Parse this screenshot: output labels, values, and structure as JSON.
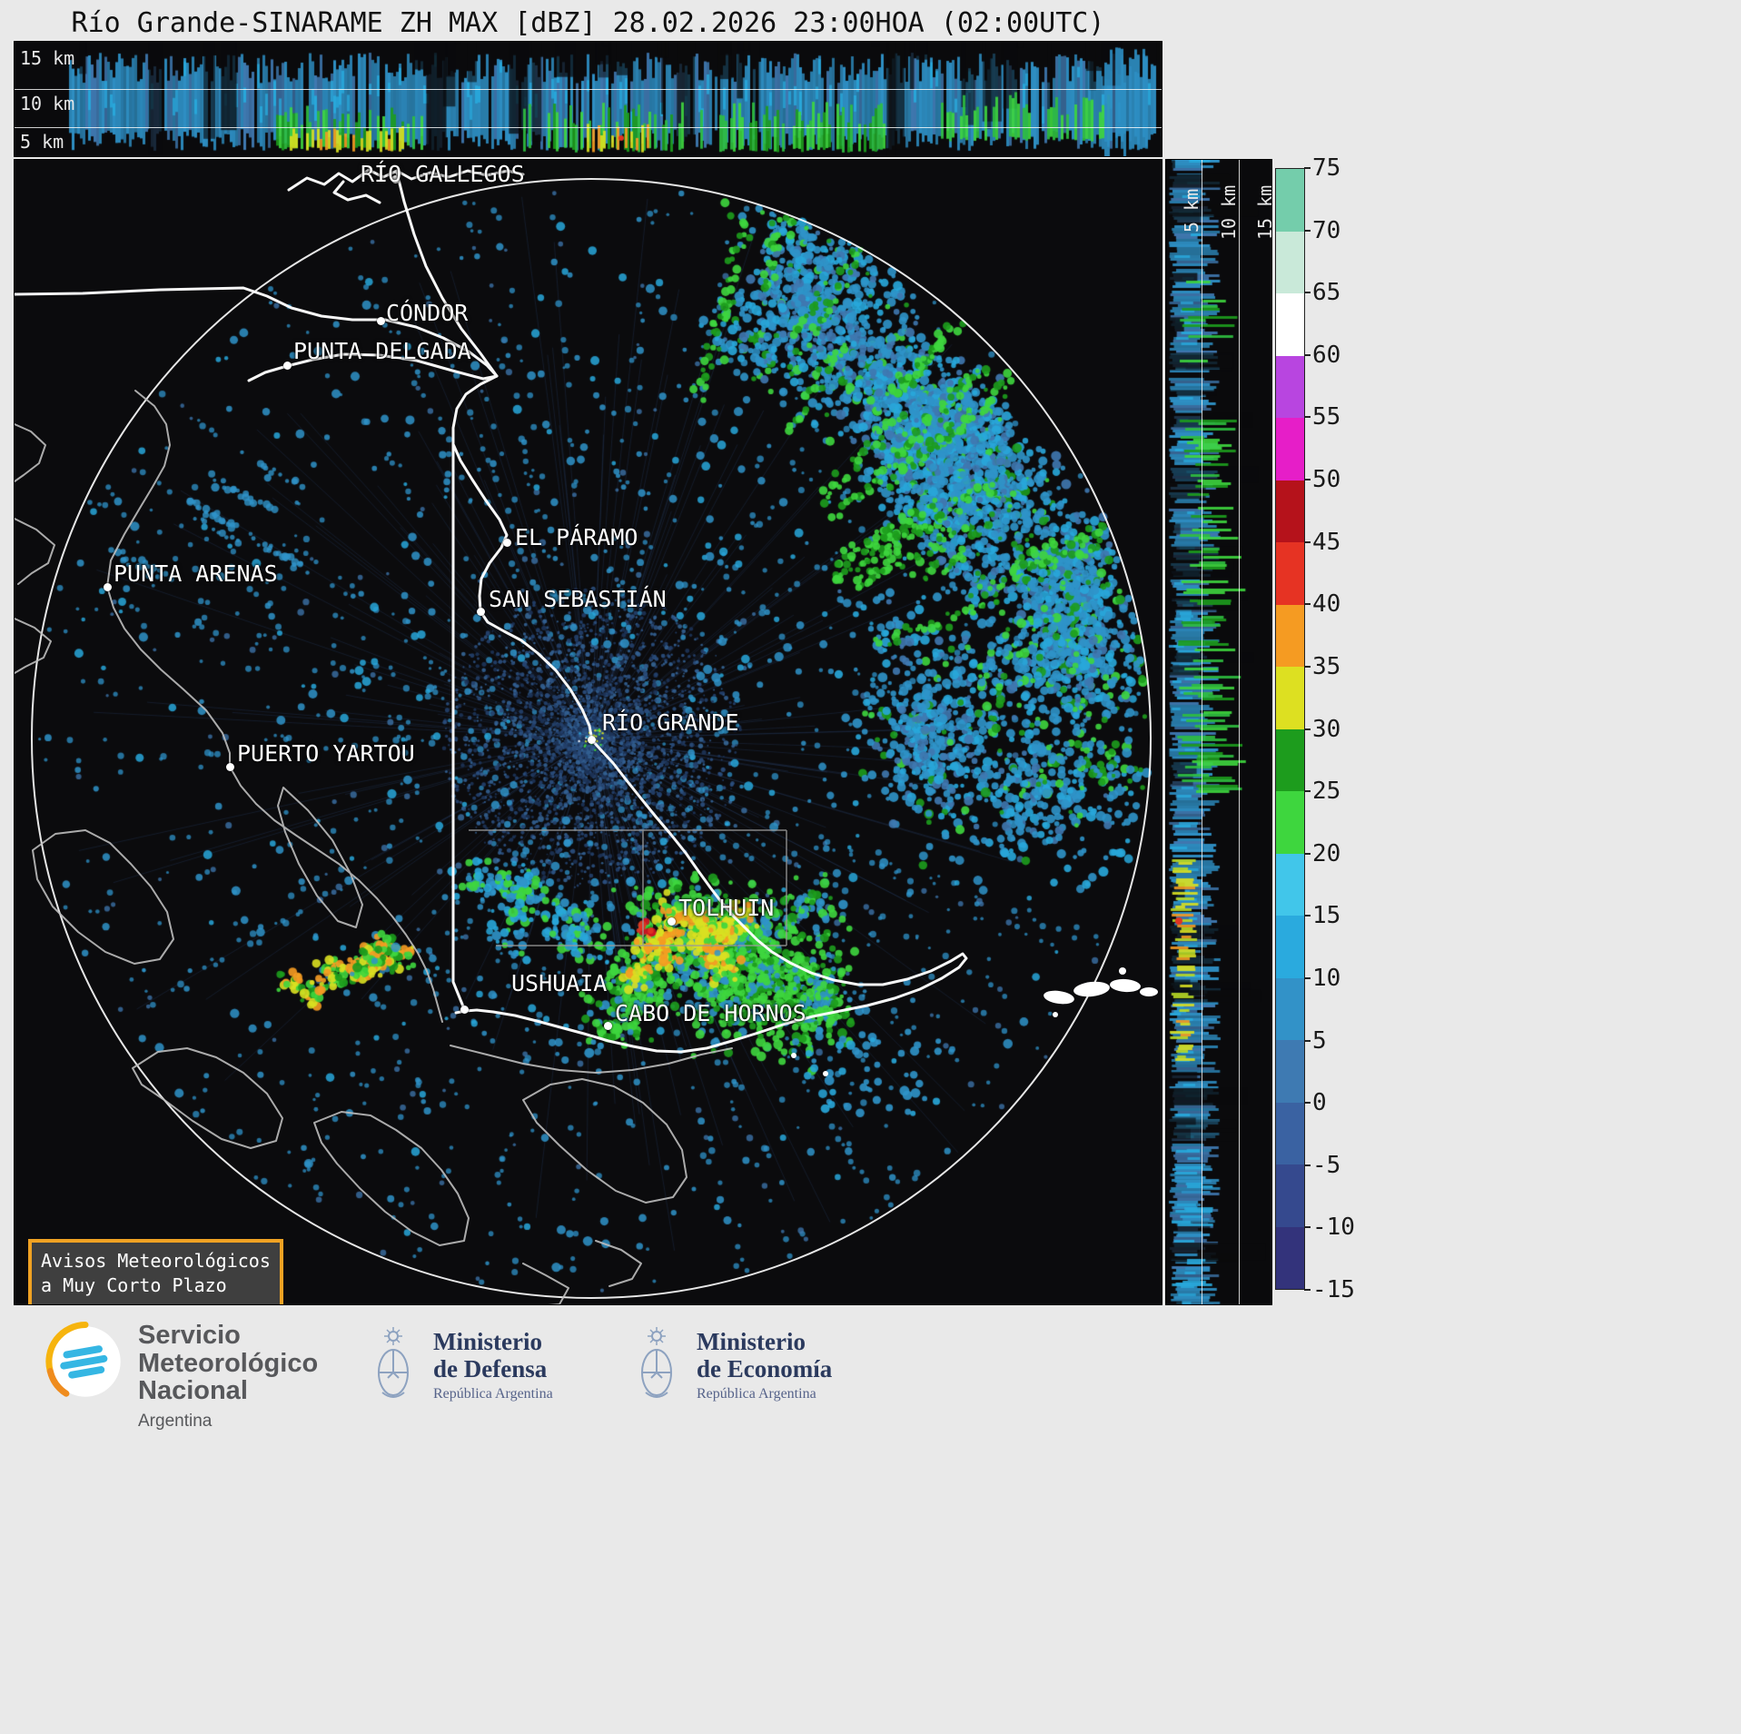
{
  "title": "Río Grande-SINARAME ZH MAX [dBZ] 28.02.2026 23:00HOA (02:00UTC)",
  "top_profile": {
    "altitude_labels": [
      "15 km",
      "10 km",
      "5 km"
    ]
  },
  "side_profile": {
    "altitude_labels": [
      "5 km",
      "10 km",
      "15 km"
    ]
  },
  "colorbar": {
    "unit": "dBZ",
    "ticks": [
      "75",
      "70",
      "65",
      "60",
      "55",
      "50",
      "45",
      "40",
      "35",
      "30",
      "25",
      "20",
      "15",
      "10",
      "5",
      "0",
      "-5",
      "-10",
      "-15"
    ],
    "band_colors_top_to_bottom": [
      "#74cdab",
      "#c9e9d9",
      "#ffffff",
      "#b845e0",
      "#e61ec8",
      "#b5121b",
      "#e63323",
      "#f59b22",
      "#dde021",
      "#1d9c1d",
      "#3ed63e",
      "#41c6ea",
      "#2aaade",
      "#3292c8",
      "#3e7ab2",
      "#3a62a2",
      "#35498e",
      "#33337b"
    ]
  },
  "map": {
    "radar_site": "RÍO GRANDE",
    "places": [
      {
        "name": "RÍO GALLEGOS",
        "label": [
          396,
          176
        ],
        "dot": [
          434,
          196
        ]
      },
      {
        "name": "CÓNDOR",
        "label": [
          424,
          329
        ],
        "dot": [
          418,
          352
        ]
      },
      {
        "name": "PUNTA DELGADA",
        "label": [
          322,
          371
        ],
        "dot": [
          315,
          401
        ]
      },
      {
        "name": "EL PÁRAMO",
        "label": [
          566,
          576
        ],
        "dot": [
          557,
          596
        ]
      },
      {
        "name": "SAN SEBASTIÁN",
        "label": [
          537,
          644
        ],
        "dot": [
          528,
          672
        ]
      },
      {
        "name": "PUNTA ARENAS",
        "label": [
          124,
          616
        ],
        "dot": [
          117,
          645
        ]
      },
      {
        "name": "RÍO GRANDE",
        "label": [
          662,
          780
        ],
        "dot": [
          650,
          813
        ]
      },
      {
        "name": "PUERTO YARTOU",
        "label": [
          260,
          814
        ],
        "dot": [
          252,
          843
        ]
      },
      {
        "name": "TOLHUIN",
        "label": [
          746,
          984
        ],
        "dot": [
          738,
          1013
        ]
      },
      {
        "name": "USHUAIA",
        "label": [
          562,
          1067
        ],
        "dot": [
          510,
          1110
        ]
      },
      {
        "name": "CABO DE HORNOS",
        "label": [
          676,
          1100
        ],
        "dot": [
          668,
          1128
        ]
      }
    ]
  },
  "notice_box": {
    "line1": "Avisos Meteorológicos",
    "line2": "a Muy Corto Plazo",
    "border_color": "#f0a223"
  },
  "footer": {
    "smn_line1": "Servicio",
    "smn_line2": "Meteorológico",
    "smn_line3": "Nacional",
    "smn_country": "Argentina",
    "defensa_line1": "Ministerio",
    "defensa_line2": "de Defensa",
    "defensa_sub": "República Argentina",
    "economia_line1": "Ministerio",
    "economia_line2": "de Economía",
    "economia_sub": "República Argentina"
  }
}
